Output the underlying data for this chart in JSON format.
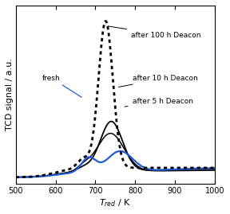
{
  "xmin": 500,
  "xmax": 1000,
  "xlabel": "$T_{red}$ / K",
  "ylabel": "TCD signal / a.u.",
  "xticks": [
    500,
    600,
    700,
    800,
    900,
    1000
  ],
  "background_color": "#ffffff",
  "curves": {
    "100h": {
      "color": "black",
      "lw": 2.0
    },
    "10h": {
      "color": "black",
      "lw": 1.3
    },
    "5h": {
      "color": "#1e5cd8",
      "lw": 1.6
    },
    "fresh": {
      "color": "black",
      "lw": 1.1
    }
  },
  "annot_fontsize": 6.5,
  "axis_fontsize": 8,
  "tick_fontsize": 7
}
